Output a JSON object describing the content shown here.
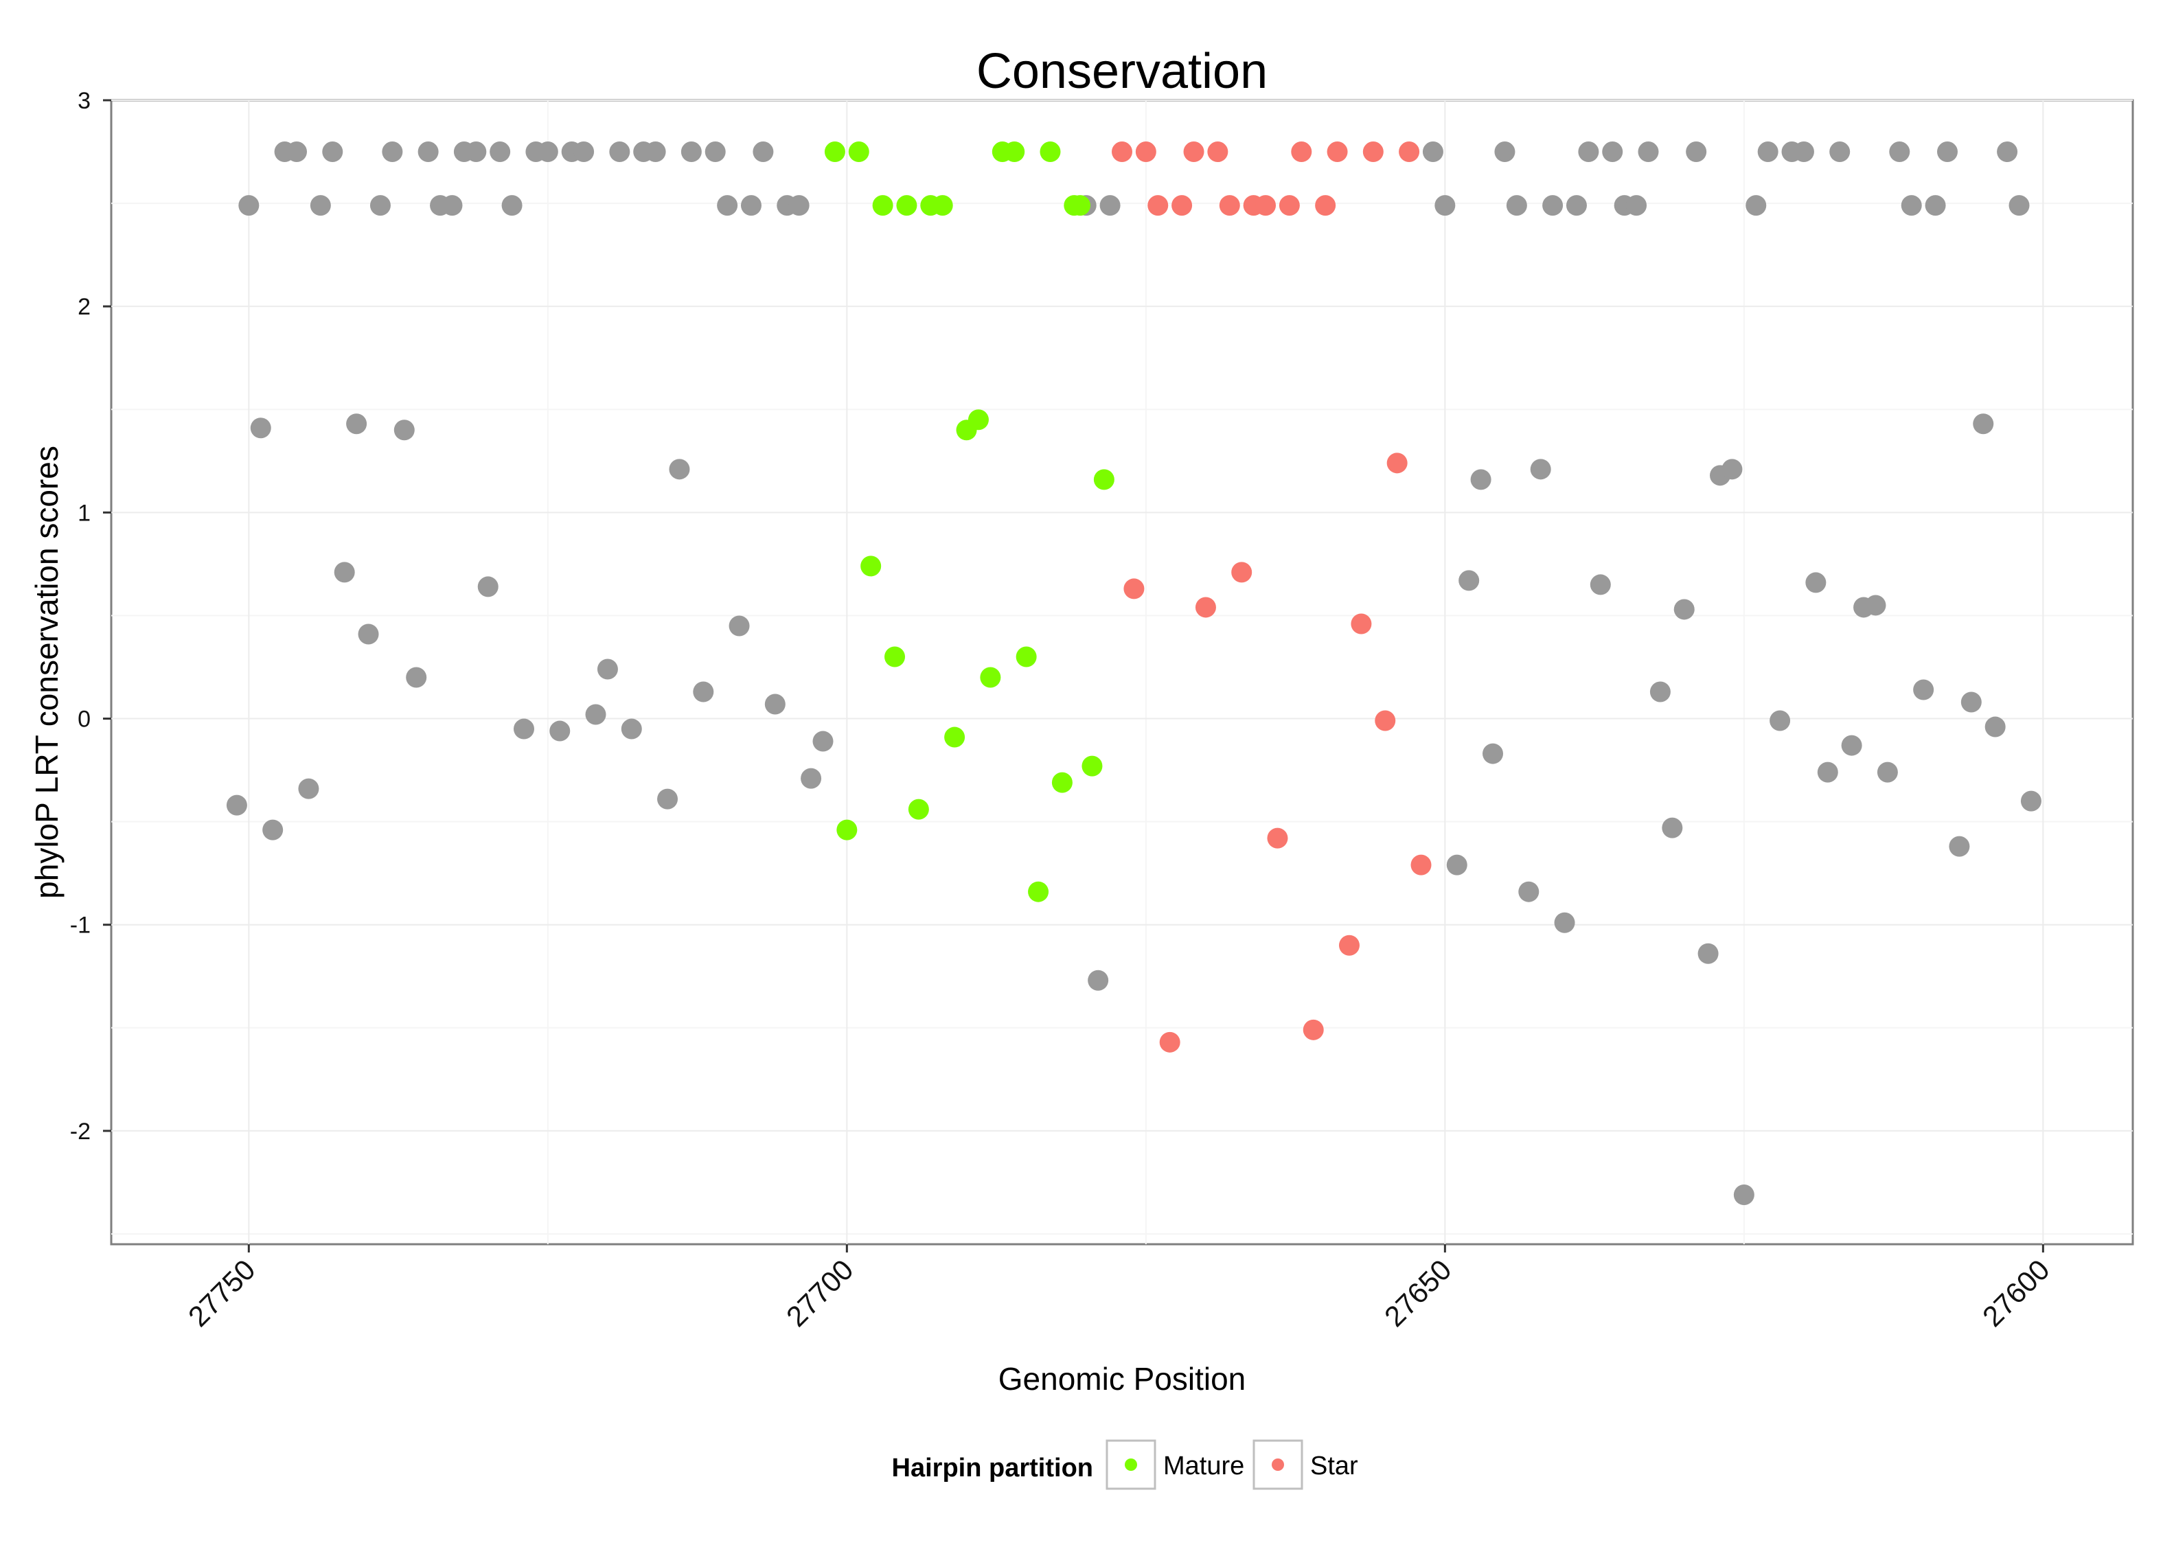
{
  "chart_data": {
    "type": "scatter",
    "title": "Conservation",
    "xlabel": "Genomic Position",
    "ylabel": "phyloP LRT conservation scores",
    "x_reversed": true,
    "xlim": [
      27761.5,
      27592.5
    ],
    "ylim": [
      -2.55,
      3.0
    ],
    "x_ticks": [
      27750,
      27700,
      27650,
      27600
    ],
    "y_ticks": [
      -2,
      -1,
      0,
      1,
      2,
      3
    ],
    "grid": true,
    "legend": {
      "title": "Hairpin partition",
      "placement": "bottom",
      "entries": [
        {
          "name": "Mature",
          "color": "#7CFC00"
        },
        {
          "name": "Star",
          "color": "#F8766D"
        }
      ]
    },
    "colors": {
      "other": "#999999",
      "Mature": "#7CFC00",
      "Star": "#F8766D"
    },
    "series": [
      {
        "group": "other",
        "points": [
          [
            27751,
            -0.42
          ],
          [
            27750,
            2.49
          ],
          [
            27749,
            1.41
          ],
          [
            27748,
            -0.54
          ],
          [
            27747,
            2.75
          ],
          [
            27746,
            2.75
          ],
          [
            27745,
            -0.34
          ],
          [
            27744,
            2.49
          ],
          [
            27743,
            2.75
          ],
          [
            27742,
            0.71
          ],
          [
            27741,
            1.43
          ],
          [
            27740,
            0.41
          ],
          [
            27739,
            2.49
          ],
          [
            27738,
            2.75
          ],
          [
            27737,
            1.4
          ],
          [
            27736,
            0.2
          ],
          [
            27735,
            2.75
          ],
          [
            27734,
            2.49
          ],
          [
            27733,
            2.49
          ],
          [
            27732,
            2.75
          ],
          [
            27731,
            2.75
          ],
          [
            27730,
            0.64
          ],
          [
            27729,
            2.75
          ],
          [
            27728,
            2.49
          ],
          [
            27727,
            -0.05
          ],
          [
            27726,
            2.75
          ],
          [
            27725,
            2.75
          ],
          [
            27724,
            -0.06
          ],
          [
            27723,
            2.75
          ],
          [
            27722,
            2.75
          ],
          [
            27721,
            0.02
          ],
          [
            27720,
            0.24
          ],
          [
            27719,
            2.75
          ],
          [
            27718,
            -0.05
          ],
          [
            27717,
            2.75
          ],
          [
            27716,
            2.75
          ],
          [
            27715,
            -0.39
          ],
          [
            27714,
            1.21
          ],
          [
            27713,
            2.75
          ],
          [
            27712,
            0.13
          ],
          [
            27711,
            2.75
          ],
          [
            27710,
            2.49
          ],
          [
            27709,
            0.45
          ],
          [
            27708,
            2.49
          ],
          [
            27707,
            2.75
          ],
          [
            27706,
            0.07
          ],
          [
            27705,
            2.49
          ],
          [
            27704,
            2.49
          ],
          [
            27703,
            -0.29
          ],
          [
            27702,
            -0.11
          ],
          [
            27680,
            2.49
          ],
          [
            27679,
            -1.27
          ],
          [
            27678,
            2.49
          ],
          [
            27651,
            2.75
          ],
          [
            27650,
            2.49
          ],
          [
            27649,
            -0.71
          ],
          [
            27648,
            0.67
          ],
          [
            27647,
            1.16
          ],
          [
            27646,
            -0.17
          ],
          [
            27645,
            2.75
          ],
          [
            27644,
            2.49
          ],
          [
            27643,
            -0.84
          ],
          [
            27642,
            1.21
          ],
          [
            27641,
            2.49
          ],
          [
            27640,
            -0.99
          ],
          [
            27639,
            2.49
          ],
          [
            27638,
            2.75
          ],
          [
            27637,
            0.65
          ],
          [
            27636,
            2.75
          ],
          [
            27635,
            2.49
          ],
          [
            27634,
            2.49
          ],
          [
            27633,
            2.75
          ],
          [
            27632,
            0.13
          ],
          [
            27631,
            -0.53
          ],
          [
            27630,
            0.53
          ],
          [
            27629,
            2.75
          ],
          [
            27628,
            -1.14
          ],
          [
            27627,
            1.18
          ],
          [
            27626,
            1.21
          ],
          [
            27625,
            -2.31
          ],
          [
            27624,
            2.49
          ],
          [
            27623,
            2.75
          ],
          [
            27622,
            -0.01
          ],
          [
            27621,
            2.75
          ],
          [
            27620,
            2.75
          ],
          [
            27619,
            0.66
          ],
          [
            27618,
            -0.26
          ],
          [
            27617,
            2.75
          ],
          [
            27616,
            -0.13
          ],
          [
            27615,
            0.54
          ],
          [
            27614,
            0.55
          ],
          [
            27613,
            -0.26
          ],
          [
            27612,
            2.75
          ],
          [
            27611,
            2.49
          ],
          [
            27610,
            0.14
          ],
          [
            27609,
            2.49
          ],
          [
            27608,
            2.75
          ],
          [
            27607,
            -0.62
          ],
          [
            27606,
            0.08
          ],
          [
            27605,
            1.43
          ],
          [
            27604,
            -0.04
          ],
          [
            27603,
            2.75
          ],
          [
            27602,
            2.49
          ],
          [
            27601,
            -0.4
          ]
        ]
      },
      {
        "name": "Mature",
        "group": "Mature",
        "points": [
          [
            27701,
            2.75
          ],
          [
            27700,
            -0.54
          ],
          [
            27699,
            2.75
          ],
          [
            27698,
            0.74
          ],
          [
            27697,
            2.49
          ],
          [
            27696,
            0.3
          ],
          [
            27695,
            2.49
          ],
          [
            27694,
            -0.44
          ],
          [
            27693,
            2.49
          ],
          [
            27692,
            2.49
          ],
          [
            27691,
            -0.09
          ],
          [
            27690,
            1.4
          ],
          [
            27689,
            1.45
          ],
          [
            27688,
            0.2
          ],
          [
            27687,
            2.75
          ],
          [
            27686,
            2.75
          ],
          [
            27685,
            0.3
          ],
          [
            27684,
            -0.84
          ],
          [
            27683,
            2.75
          ],
          [
            27682,
            -0.31
          ],
          [
            27681,
            2.49
          ],
          [
            27680.5,
            2.49
          ],
          [
            27679.5,
            -0.23
          ],
          [
            27678.5,
            1.16
          ]
        ]
      },
      {
        "name": "Star",
        "group": "Star",
        "points": [
          [
            27677,
            2.75
          ],
          [
            27676,
            0.63
          ],
          [
            27675,
            2.75
          ],
          [
            27674,
            2.49
          ],
          [
            27673,
            -1.57
          ],
          [
            27672,
            2.49
          ],
          [
            27671,
            2.75
          ],
          [
            27670,
            0.54
          ],
          [
            27669,
            2.75
          ],
          [
            27668,
            2.49
          ],
          [
            27667,
            0.71
          ],
          [
            27666,
            2.49
          ],
          [
            27665,
            2.49
          ],
          [
            27664,
            -0.58
          ],
          [
            27663,
            2.49
          ],
          [
            27662,
            2.75
          ],
          [
            27661,
            -1.51
          ],
          [
            27660,
            2.49
          ],
          [
            27659,
            2.75
          ],
          [
            27658,
            -1.1
          ],
          [
            27657,
            0.46
          ],
          [
            27656,
            2.75
          ],
          [
            27655,
            -0.01
          ],
          [
            27654,
            1.24
          ],
          [
            27653,
            2.75
          ],
          [
            27652,
            -0.71
          ]
        ]
      }
    ]
  }
}
